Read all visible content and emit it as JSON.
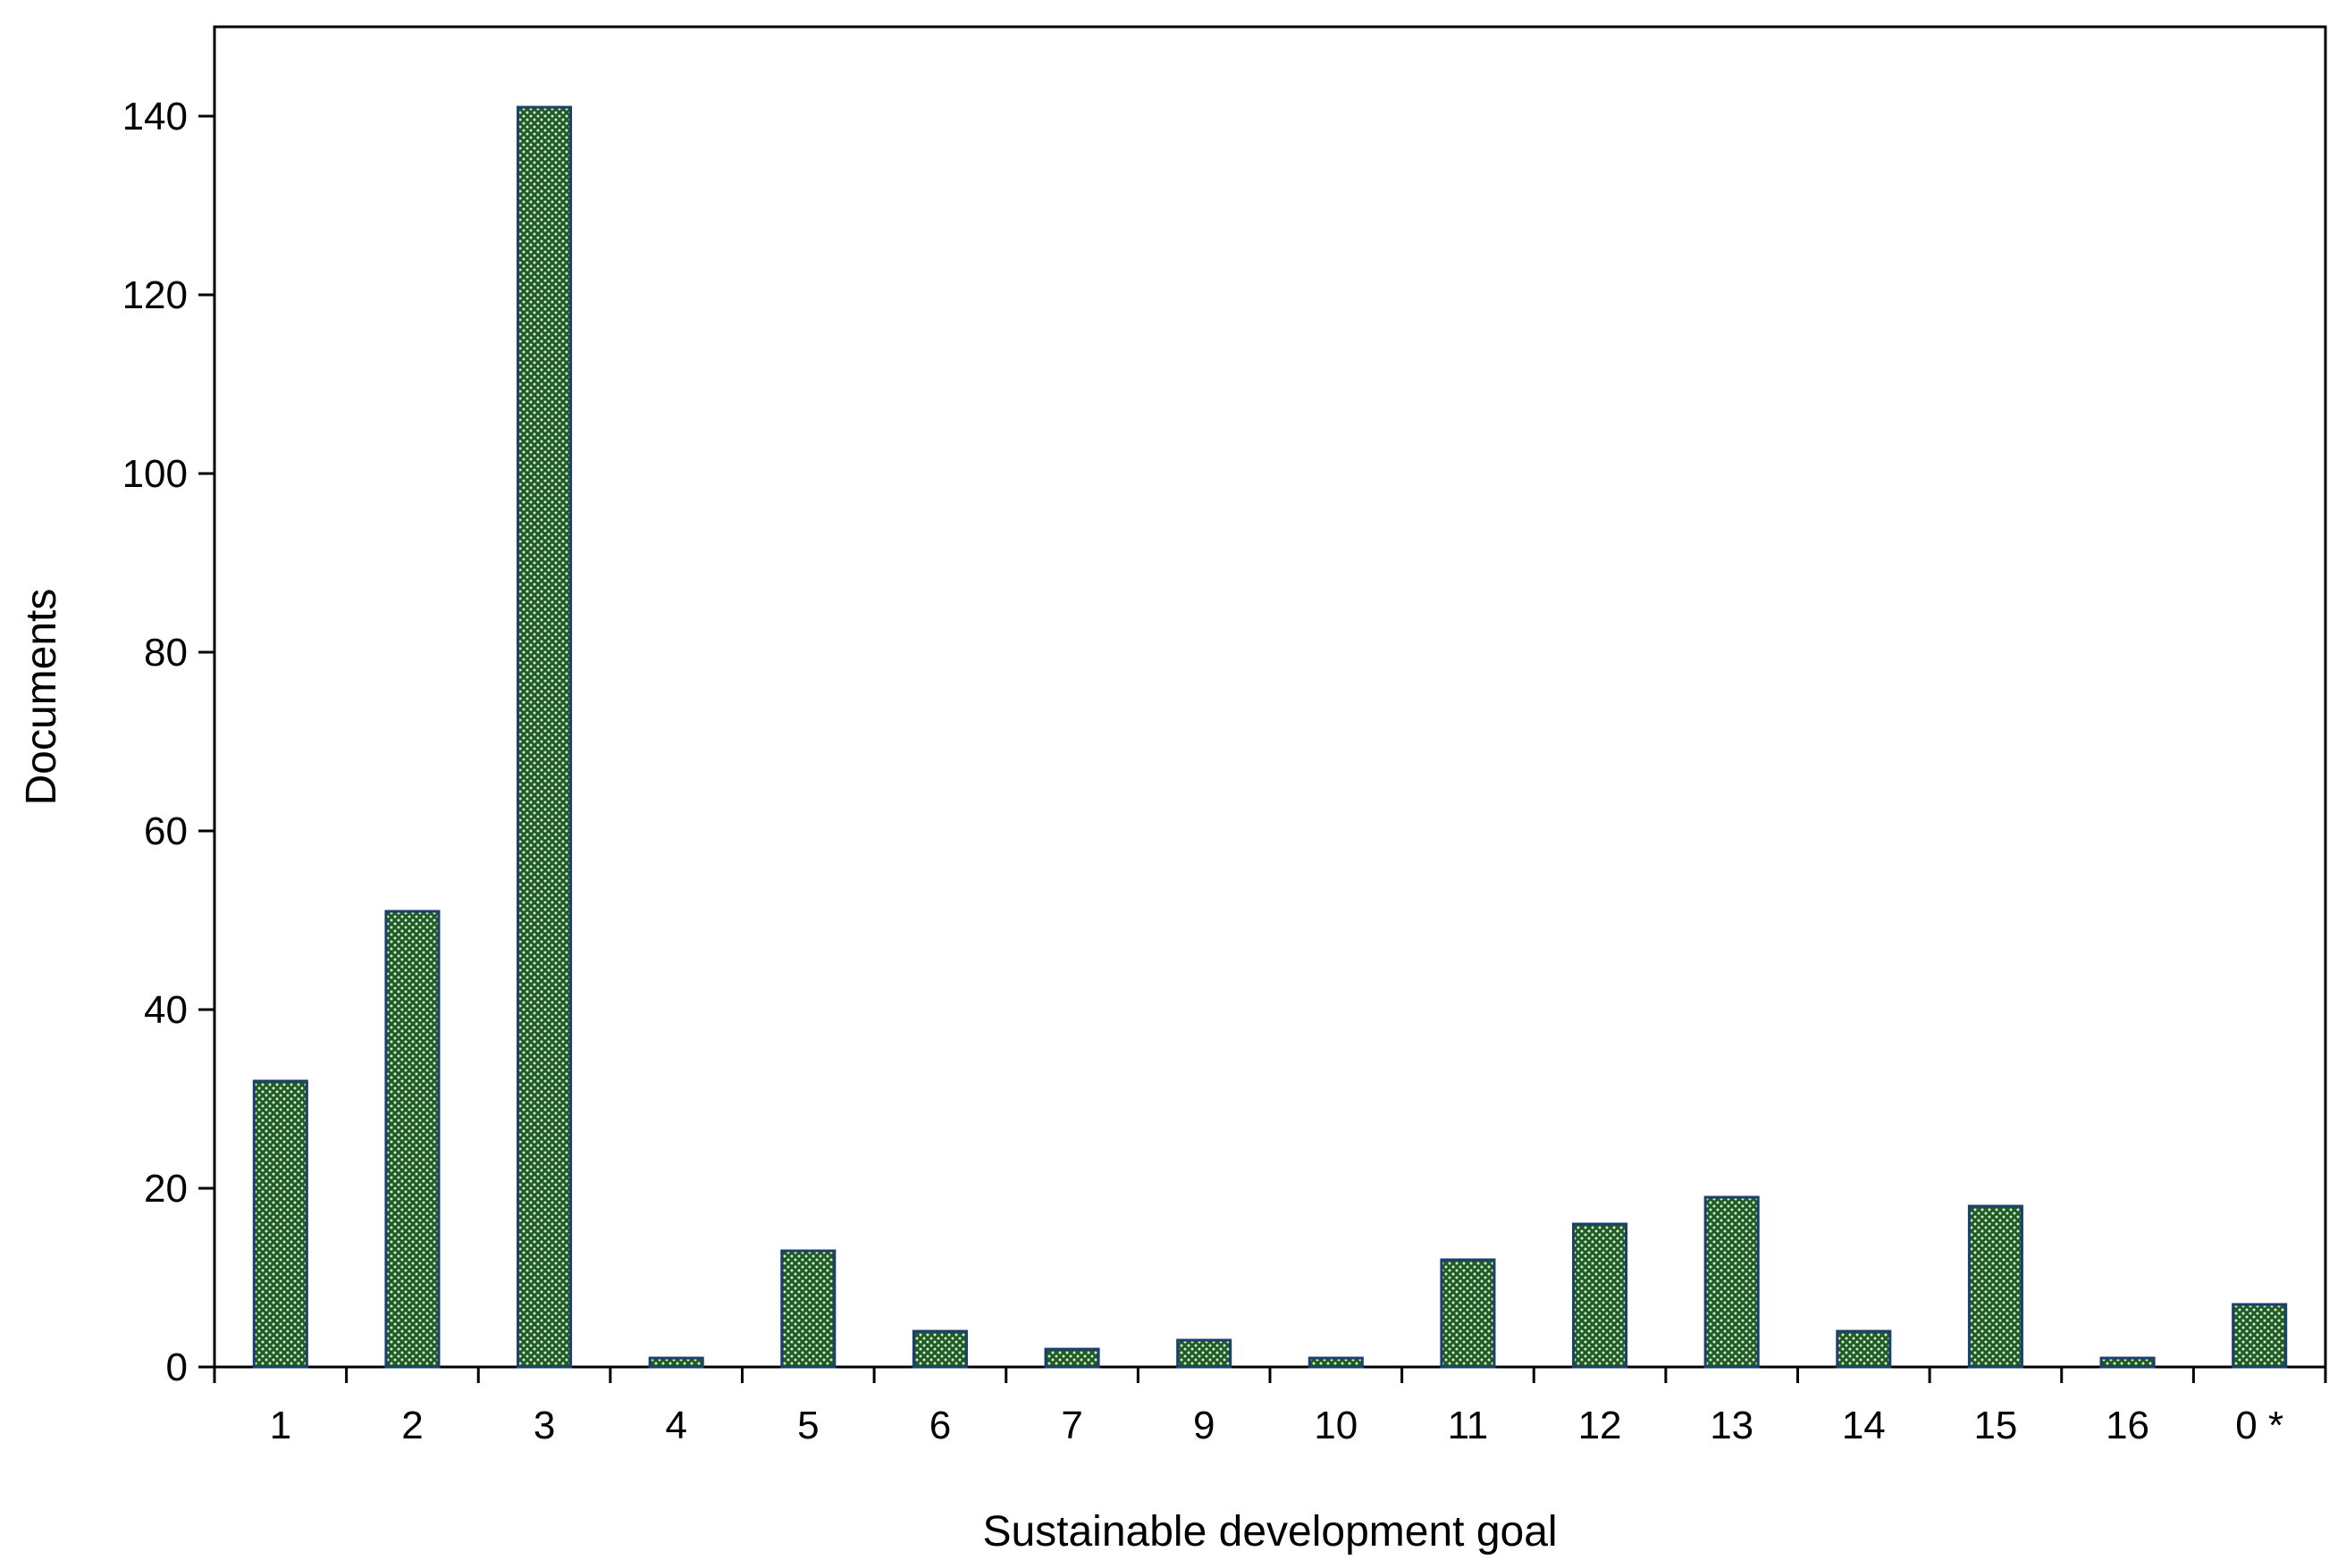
{
  "chart_data": {
    "type": "bar",
    "title": "",
    "xlabel": "Sustainable development goal",
    "ylabel": "Documents",
    "categories": [
      "1",
      "2",
      "3",
      "4",
      "5",
      "6",
      "7",
      "9",
      "10",
      "11",
      "12",
      "13",
      "14",
      "15",
      "16",
      "0 *"
    ],
    "values": [
      32,
      51,
      141,
      1,
      13,
      4,
      2,
      3,
      1,
      12,
      16,
      19,
      4,
      18,
      1,
      7
    ],
    "ylim": [
      0,
      150
    ],
    "yticks": [
      0,
      20,
      40,
      60,
      80,
      100,
      120,
      140
    ],
    "grid": false,
    "legend": "none",
    "colors": {
      "bar_fill": "#1e5a2a",
      "bar_dots": "#d9efc2",
      "bar_edge": "#1c3f6e",
      "axis": "#000000"
    }
  }
}
